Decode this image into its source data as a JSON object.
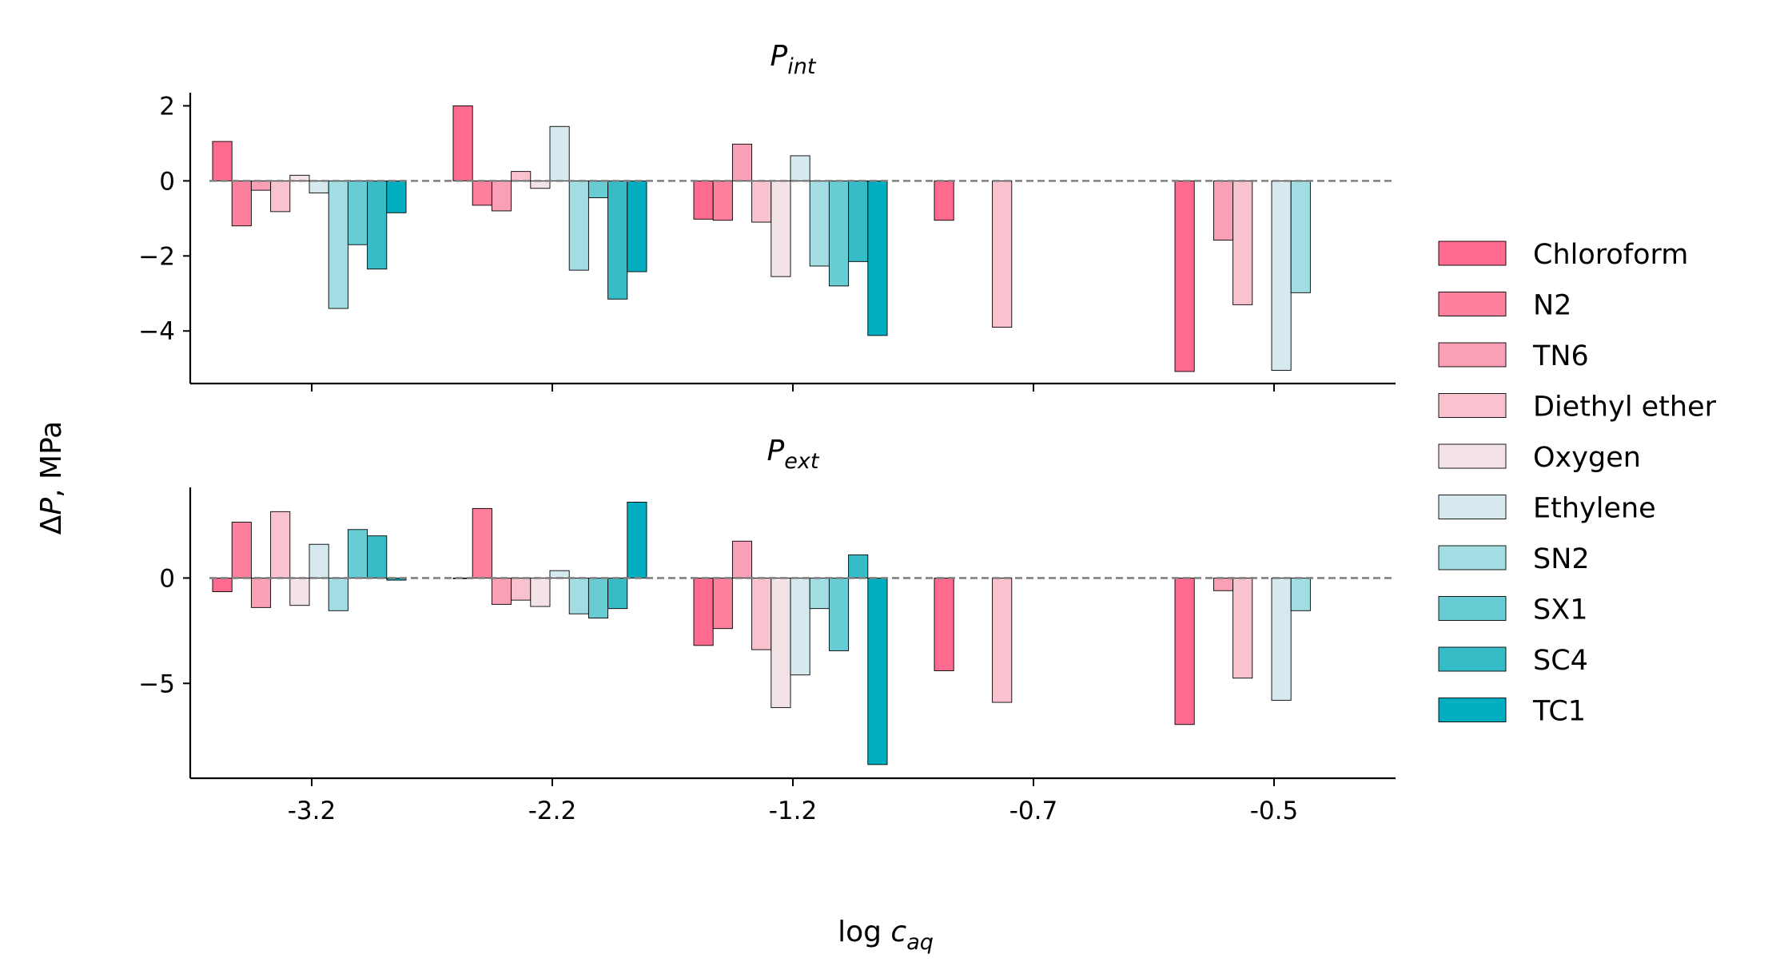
{
  "chart_data": {
    "type": "bar",
    "categories": [
      "-3.2",
      "-2.2",
      "-1.2",
      "-0.7",
      "-0.5"
    ],
    "xlabel": "log c_aq",
    "xlabel_main": "log ",
    "xlabel_var": "c",
    "xlabel_sub": "aq",
    "ylabel": "ΔP, MPa",
    "ylabel_delta": "Δ",
    "ylabel_var": "P",
    "ylabel_rest": ", MPa",
    "grid": false,
    "zero_line": "dashed gray",
    "legend_placement": "right",
    "series": [
      {
        "name": "Chloroform",
        "color": "#ff6b8e"
      },
      {
        "name": "N2",
        "color": "#fd819d"
      },
      {
        "name": "TN6",
        "color": "#faa0b6"
      },
      {
        "name": "Diethyl ether",
        "color": "#f8c2cf"
      },
      {
        "name": "Oxygen",
        "color": "#f3e3e7"
      },
      {
        "name": "Ethylene",
        "color": "#d5e9ee"
      },
      {
        "name": "SN2",
        "color": "#a2dde3"
      },
      {
        "name": "SX1",
        "color": "#67ccd4"
      },
      {
        "name": "SC4",
        "color": "#36bcc7"
      },
      {
        "name": "TC1",
        "color": "#00aebf"
      }
    ],
    "panels": [
      {
        "title_main": "P",
        "title_sub": "int",
        "ylim": [
          -5.4,
          2.35
        ],
        "yticks": [
          2,
          0,
          -2,
          -4
        ],
        "ytick_labels": [
          "2",
          "0",
          "−2",
          "−4"
        ],
        "values": [
          [
            1.05,
            -1.2,
            -0.25,
            -0.82,
            0.15,
            -0.32,
            -3.4,
            -1.7,
            -2.35,
            -0.85
          ],
          [
            2.0,
            -0.65,
            -0.8,
            0.25,
            -0.2,
            1.45,
            -2.38,
            -0.45,
            -3.15,
            -2.42
          ],
          [
            -1.02,
            -1.05,
            0.98,
            -1.1,
            -2.55,
            0.67,
            -2.27,
            -2.8,
            -2.15,
            -4.12
          ],
          [
            -1.05,
            null,
            null,
            -3.9,
            null,
            null,
            null,
            null,
            null,
            null
          ],
          [
            -5.08,
            null,
            -1.58,
            -3.3,
            null,
            -5.05,
            -2.98,
            null,
            null,
            null
          ]
        ]
      },
      {
        "title_main": "P",
        "title_sub": "ext",
        "ylim": [
          -9.5,
          4.3
        ],
        "yticks": [
          0,
          -5
        ],
        "ytick_labels": [
          "0",
          "−5"
        ],
        "values": [
          [
            -0.65,
            2.65,
            -1.4,
            3.15,
            -1.3,
            1.6,
            -1.55,
            2.3,
            2.0,
            -0.1
          ],
          [
            0.0,
            3.3,
            -1.25,
            -1.05,
            -1.35,
            0.35,
            -1.7,
            -1.9,
            -1.45,
            3.6
          ],
          [
            -3.2,
            -2.4,
            1.75,
            -3.4,
            -6.15,
            -4.6,
            -1.45,
            -3.45,
            1.1,
            -8.85
          ],
          [
            -4.4,
            null,
            null,
            -5.9,
            null,
            null,
            null,
            null,
            null,
            null
          ],
          [
            -6.95,
            null,
            -0.6,
            -4.75,
            null,
            -5.8,
            -1.55,
            null,
            null,
            null
          ]
        ]
      }
    ]
  }
}
